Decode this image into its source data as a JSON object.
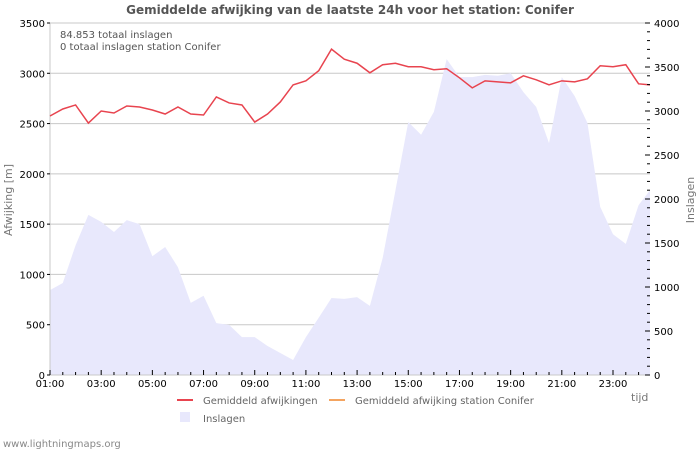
{
  "chart_data": {
    "type": "line",
    "title": "Gemiddelde afwijking van de laatste 24h voor het station: Conifer",
    "info_lines": [
      "84.853 totaal inslagen",
      "0 totaal inslagen station Conifer"
    ],
    "xlabel": "tijd",
    "ylabel": "Afwijking  [m]",
    "y2label": "Inslagen",
    "x_tick_labels": [
      "01:00",
      "03:00",
      "05:00",
      "07:00",
      "09:00",
      "11:00",
      "13:00",
      "15:00",
      "17:00",
      "19:00",
      "21:00",
      "23:00"
    ],
    "ylim": [
      0,
      3500
    ],
    "y_ticks": [
      0,
      500,
      1000,
      1500,
      2000,
      2500,
      3000,
      3500
    ],
    "y2lim": [
      0,
      4000
    ],
    "y2_ticks": [
      0,
      500,
      1000,
      1500,
      2000,
      2500,
      3000,
      3500,
      4000
    ],
    "grid": true,
    "legend_position": "bottom",
    "x": [
      "01:00",
      "01:30",
      "02:00",
      "02:30",
      "03:00",
      "03:30",
      "04:00",
      "04:30",
      "05:00",
      "05:30",
      "06:00",
      "06:30",
      "07:00",
      "07:30",
      "08:00",
      "08:30",
      "09:00",
      "09:30",
      "10:00",
      "10:30",
      "11:00",
      "11:30",
      "12:00",
      "12:30",
      "13:00",
      "13:30",
      "14:00",
      "14:30",
      "15:00",
      "15:30",
      "16:00",
      "16:30",
      "17:00",
      "17:30",
      "18:00",
      "18:30",
      "19:00",
      "19:30",
      "20:00",
      "20:30",
      "21:00",
      "21:30",
      "22:00",
      "22:30",
      "23:00",
      "23:30",
      "24:00",
      "24:30"
    ],
    "series": [
      {
        "name": "Gemiddeld afwijkingen",
        "axis": "left",
        "type": "line",
        "color": "#e8444f",
        "values": [
          2575,
          2645,
          2685,
          2505,
          2625,
          2605,
          2675,
          2665,
          2635,
          2595,
          2665,
          2595,
          2585,
          2765,
          2705,
          2685,
          2515,
          2595,
          2715,
          2885,
          2925,
          3025,
          3240,
          3140,
          3100,
          3005,
          3085,
          3100,
          3065,
          3065,
          3035,
          3045,
          2955,
          2855,
          2925,
          2915,
          2905,
          2975,
          2935,
          2885,
          2925,
          2915,
          2945,
          3075,
          3065,
          3085,
          2895,
          2885
        ]
      },
      {
        "name": "Gemiddeld afwijking station Conifer",
        "axis": "left",
        "type": "line",
        "color": "#f4a460",
        "values": []
      },
      {
        "name": "Inslagen",
        "axis": "right",
        "type": "area",
        "color": "#e8e8fc",
        "values": [
          965,
          1045,
          1475,
          1820,
          1740,
          1625,
          1760,
          1715,
          1350,
          1455,
          1225,
          820,
          900,
          590,
          570,
          430,
          430,
          330,
          250,
          170,
          430,
          650,
          875,
          865,
          885,
          785,
          1330,
          2100,
          2875,
          2730,
          2990,
          3590,
          3385,
          3385,
          3410,
          3400,
          3430,
          3215,
          3045,
          2635,
          3385,
          3170,
          2865,
          1910,
          1600,
          1490,
          1930,
          2100
        ]
      }
    ]
  },
  "legend": {
    "items": [
      {
        "label": "Gemiddeld afwijkingen",
        "color": "#e8444f"
      },
      {
        "label": "Gemiddeld afwijking station Conifer",
        "color": "#f4a460"
      },
      {
        "label": "Inslagen",
        "color": "#e8e8fc"
      }
    ]
  },
  "footer": {
    "credit": "www.lightningmaps.org"
  }
}
